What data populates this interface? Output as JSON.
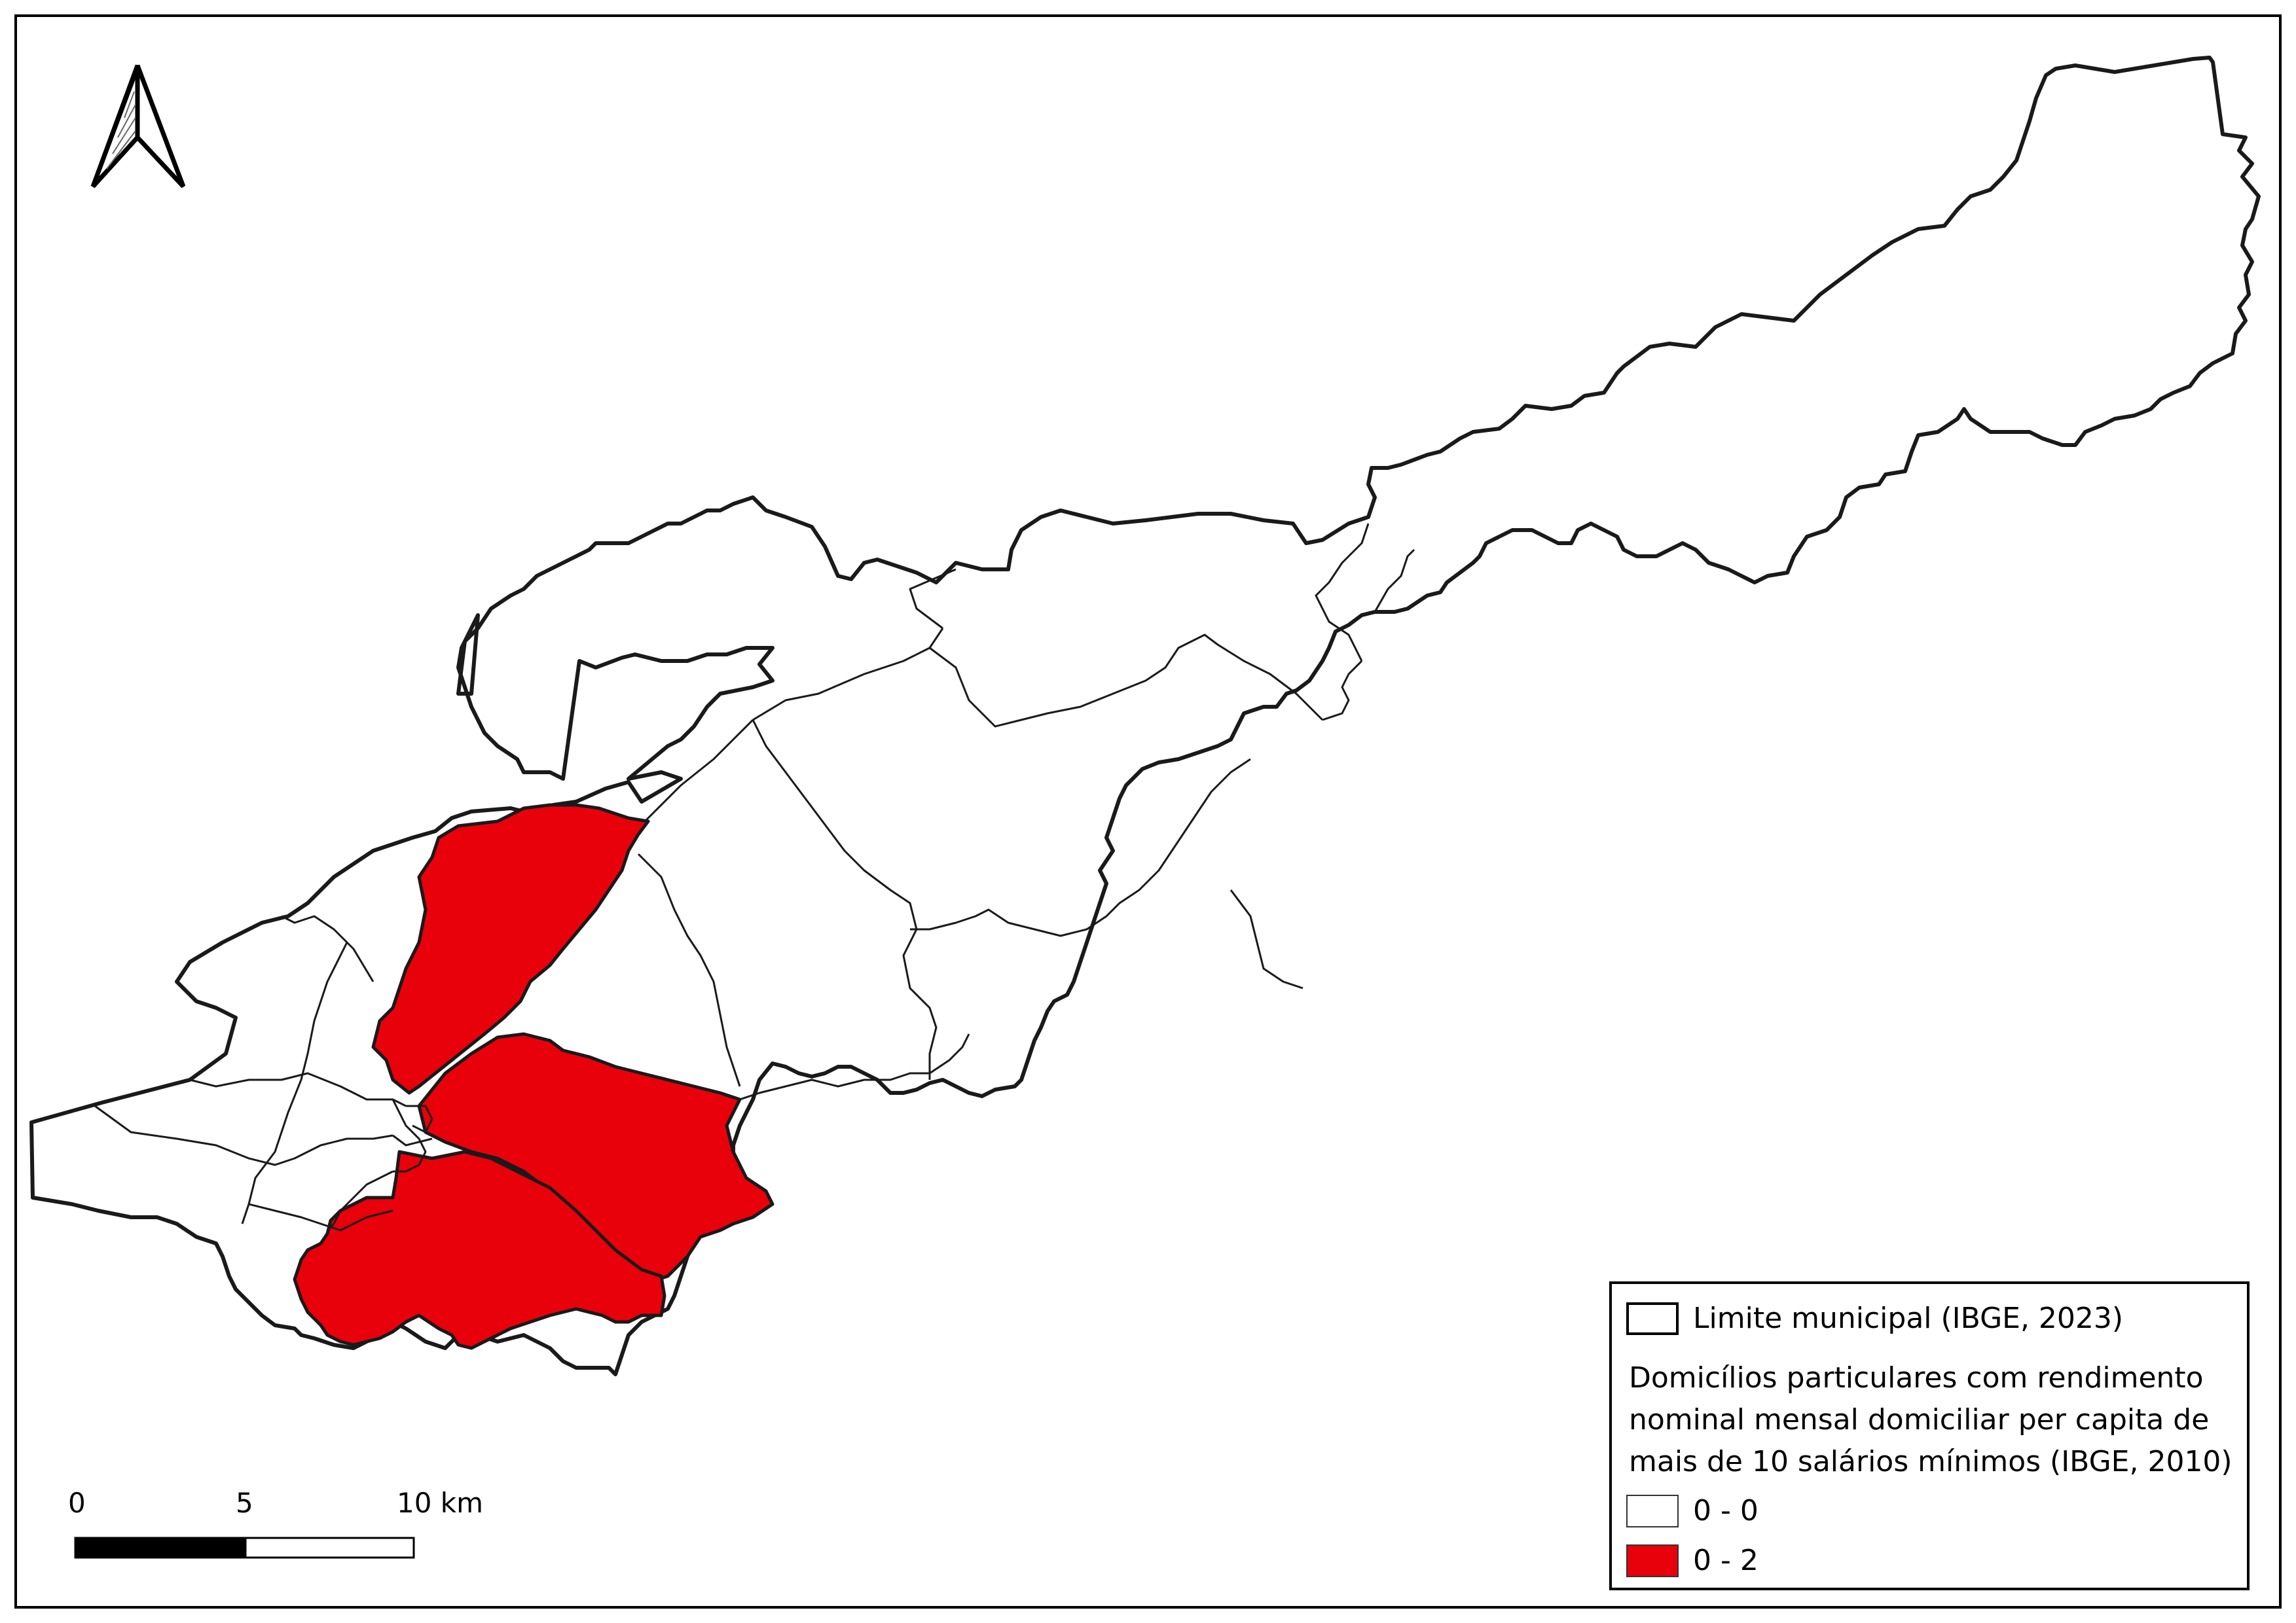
{
  "scale_bar": {
    "labels": [
      "0",
      "5",
      "10 km"
    ]
  },
  "legend": {
    "boundary_label": "Limite municipal (IBGE, 2023)",
    "title_lines": [
      "Domicílios particulares com rendimento",
      "nominal mensal domiciliar per capita de",
      "mais de 10 salários mínimos (IBGE, 2010)"
    ],
    "classes": [
      {
        "label": "0 - 0",
        "color": "#ffffff"
      },
      {
        "label": "0 - 2",
        "color": "#e8000b"
      }
    ]
  },
  "colors": {
    "highlight": "#e8000b",
    "boundary": "#1a1a1a"
  },
  "icons": {
    "north_arrow": "north-arrow-icon"
  }
}
